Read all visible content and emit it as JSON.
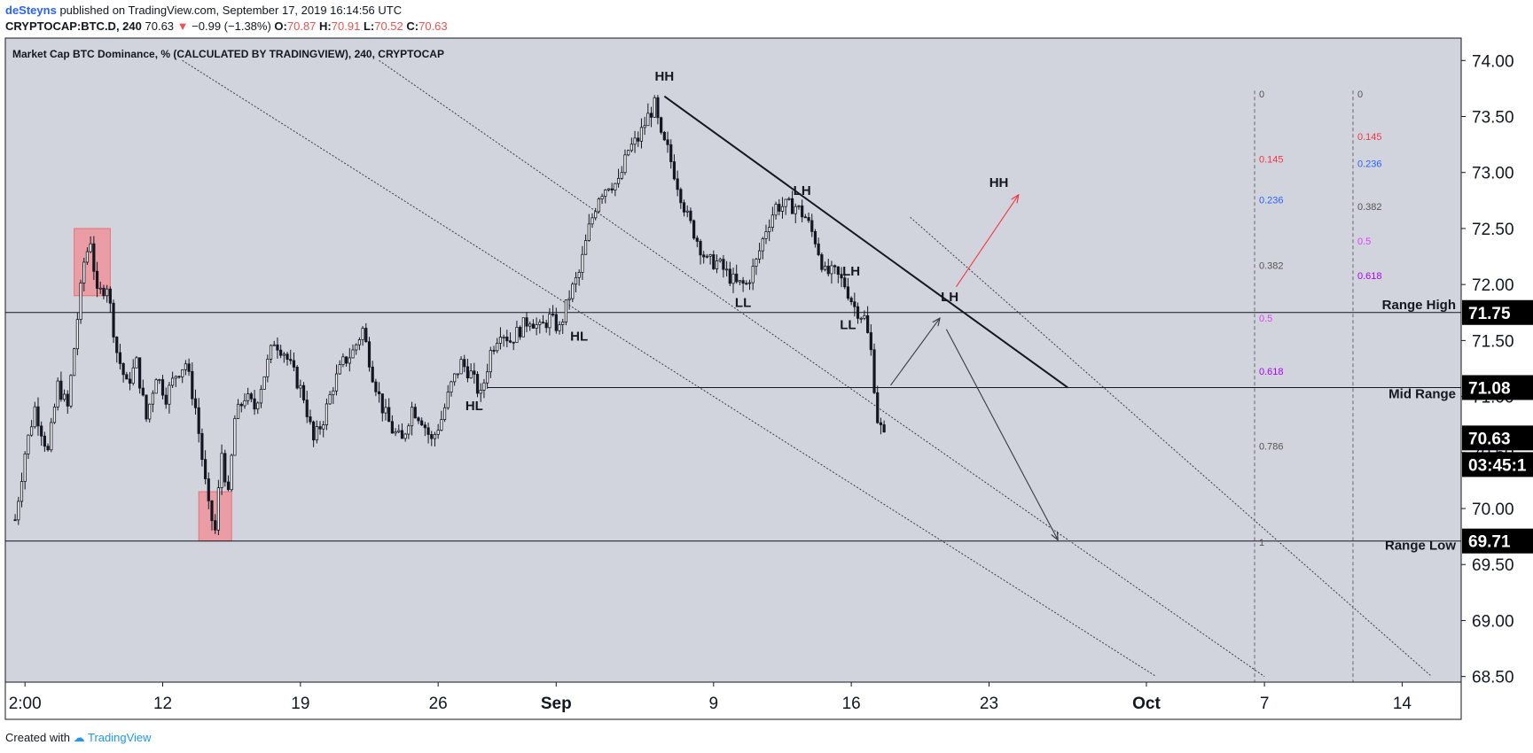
{
  "header": {
    "author": "deSteyns",
    "published": "published on TradingView.com, September 17, 2019 16:14:56 UTC",
    "symbol": "CRYPTOCAP:BTC.D, 240",
    "last": "70.63",
    "change": "−0.99 (−1.38%)",
    "open_label": "O:",
    "open": "70.87",
    "high_label": "H:",
    "high": "70.91",
    "low_label": "L:",
    "low": "70.52",
    "close_label": "C:",
    "close": "70.63"
  },
  "footer": {
    "created_with": "Created with",
    "brand": "TradingView"
  },
  "chart_data": {
    "type": "candlestick",
    "title": "Market Cap BTC Dominance, % (CALCULATED BY TRADINGVIEW), 240, CRYPTOCAP",
    "y_ticks": [
      68.5,
      69.0,
      69.5,
      70.0,
      70.5,
      71.0,
      71.5,
      72.0,
      72.5,
      73.0,
      73.5,
      74.0
    ],
    "ylim": [
      68.45,
      74.2
    ],
    "xlim": [
      "2019-08-04",
      "2019-10-17"
    ],
    "x_ticks": [
      {
        "date": "2019-08-05",
        "label": "2:00"
      },
      {
        "date": "2019-08-12",
        "label": "12"
      },
      {
        "date": "2019-08-19",
        "label": "19"
      },
      {
        "date": "2019-08-26",
        "label": "26"
      },
      {
        "date": "2019-09-01",
        "label": "Sep"
      },
      {
        "date": "2019-09-09",
        "label": "9"
      },
      {
        "date": "2019-09-16",
        "label": "16"
      },
      {
        "date": "2019-09-23",
        "label": "23"
      },
      {
        "date": "2019-10-01",
        "label": "Oct"
      },
      {
        "date": "2019-10-07",
        "label": "7"
      },
      {
        "date": "2019-10-14",
        "label": "14"
      }
    ],
    "series_path": [
      [
        "2019-08-04 12:00",
        69.9
      ],
      [
        "2019-08-05 00:00",
        70.5
      ],
      [
        "2019-08-05 12:00",
        70.9
      ],
      [
        "2019-08-06 04:00",
        70.5
      ],
      [
        "2019-08-06 16:00",
        71.1
      ],
      [
        "2019-08-07 04:00",
        70.9
      ],
      [
        "2019-08-07 16:00",
        71.7
      ],
      [
        "2019-08-08 00:00",
        72.2
      ],
      [
        "2019-08-08 08:00",
        72.4
      ],
      [
        "2019-08-08 16:00",
        71.9
      ],
      [
        "2019-08-09 04:00",
        72.0
      ],
      [
        "2019-08-09 16:00",
        71.4
      ],
      [
        "2019-08-10 04:00",
        71.1
      ],
      [
        "2019-08-10 16:00",
        71.3
      ],
      [
        "2019-08-11 04:00",
        70.8
      ],
      [
        "2019-08-11 16:00",
        71.2
      ],
      [
        "2019-08-12 04:00",
        71.0
      ],
      [
        "2019-08-12 16:00",
        71.2
      ],
      [
        "2019-08-13 04:00",
        71.3
      ],
      [
        "2019-08-13 16:00",
        70.9
      ],
      [
        "2019-08-14 08:00",
        70.0
      ],
      [
        "2019-08-14 16:00",
        69.8
      ],
      [
        "2019-08-15 00:00",
        70.5
      ],
      [
        "2019-08-15 08:00",
        70.1
      ],
      [
        "2019-08-15 16:00",
        70.8
      ],
      [
        "2019-08-16 04:00",
        71.0
      ],
      [
        "2019-08-16 16:00",
        70.9
      ],
      [
        "2019-08-17 04:00",
        71.2
      ],
      [
        "2019-08-17 16:00",
        71.5
      ],
      [
        "2019-08-18 04:00",
        71.4
      ],
      [
        "2019-08-18 16:00",
        71.2
      ],
      [
        "2019-08-19 04:00",
        71.0
      ],
      [
        "2019-08-19 16:00",
        70.6
      ],
      [
        "2019-08-20 04:00",
        70.8
      ],
      [
        "2019-08-20 16:00",
        71.1
      ],
      [
        "2019-08-21 04:00",
        71.3
      ],
      [
        "2019-08-21 16:00",
        71.4
      ],
      [
        "2019-08-22 04:00",
        71.6
      ],
      [
        "2019-08-22 16:00",
        71.2
      ],
      [
        "2019-08-23 04:00",
        70.9
      ],
      [
        "2019-08-23 16:00",
        70.7
      ],
      [
        "2019-08-24 04:00",
        70.6
      ],
      [
        "2019-08-24 16:00",
        70.9
      ],
      [
        "2019-08-25 04:00",
        70.8
      ],
      [
        "2019-08-25 16:00",
        70.6
      ],
      [
        "2019-08-26 04:00",
        70.8
      ],
      [
        "2019-08-26 16:00",
        71.1
      ],
      [
        "2019-08-27 04:00",
        71.3
      ],
      [
        "2019-08-27 16:00",
        71.2
      ],
      [
        "2019-08-28 04:00",
        71.0
      ],
      [
        "2019-08-28 16:00",
        71.4
      ],
      [
        "2019-08-29 04:00",
        71.6
      ],
      [
        "2019-08-29 16:00",
        71.5
      ],
      [
        "2019-08-30 04:00",
        71.6
      ],
      [
        "2019-08-30 16:00",
        71.7
      ],
      [
        "2019-08-31 04:00",
        71.6
      ],
      [
        "2019-08-31 16:00",
        71.7
      ],
      [
        "2019-09-01 04:00",
        71.6
      ],
      [
        "2019-09-01 16:00",
        71.9
      ],
      [
        "2019-09-02 04:00",
        72.1
      ],
      [
        "2019-09-02 16:00",
        72.5
      ],
      [
        "2019-09-03 04:00",
        72.8
      ],
      [
        "2019-09-03 16:00",
        72.9
      ],
      [
        "2019-09-04 04:00",
        72.9
      ],
      [
        "2019-09-04 16:00",
        73.2
      ],
      [
        "2019-09-05 04:00",
        73.3
      ],
      [
        "2019-09-05 16:00",
        73.5
      ],
      [
        "2019-09-06 00:00",
        73.6
      ],
      [
        "2019-09-06 08:00",
        73.3
      ],
      [
        "2019-09-06 16:00",
        73.2
      ],
      [
        "2019-09-07 04:00",
        72.9
      ],
      [
        "2019-09-07 16:00",
        72.6
      ],
      [
        "2019-09-08 04:00",
        72.4
      ],
      [
        "2019-09-08 16:00",
        72.2
      ],
      [
        "2019-09-09 04:00",
        72.2
      ],
      [
        "2019-09-09 16:00",
        72.1
      ],
      [
        "2019-09-10 04:00",
        72.0
      ],
      [
        "2019-09-10 16:00",
        72.0
      ],
      [
        "2019-09-11 04:00",
        72.2
      ],
      [
        "2019-09-11 16:00",
        72.5
      ],
      [
        "2019-09-12 04:00",
        72.7
      ],
      [
        "2019-09-12 16:00",
        72.7
      ],
      [
        "2019-09-13 04:00",
        72.7
      ],
      [
        "2019-09-13 16:00",
        72.6
      ],
      [
        "2019-09-14 04:00",
        72.4
      ],
      [
        "2019-09-14 16:00",
        72.1
      ],
      [
        "2019-09-15 04:00",
        72.1
      ],
      [
        "2019-09-15 16:00",
        72.0
      ],
      [
        "2019-09-16 04:00",
        71.8
      ],
      [
        "2019-09-16 16:00",
        71.7
      ],
      [
        "2019-09-17 00:00",
        71.4
      ],
      [
        "2019-09-17 08:00",
        70.8
      ],
      [
        "2019-09-17 16:00",
        70.63
      ]
    ],
    "highlight_boxes": [
      {
        "from": "2019-08-07 12:00",
        "to": "2019-08-09 08:00",
        "y_top": 72.5,
        "y_bottom": 71.9
      },
      {
        "from": "2019-08-13 20:00",
        "to": "2019-08-15 12:00",
        "y_top": 70.15,
        "y_bottom": 69.71
      }
    ],
    "levels": [
      {
        "value": 71.75,
        "label": "Range High"
      },
      {
        "value": 71.08,
        "label": "Mid Range"
      },
      {
        "value": 69.71,
        "label": "Range Low"
      }
    ],
    "price_badges": [
      "71.75",
      "71.08",
      "70.63",
      "03:45:1",
      "69.71"
    ],
    "structure_labels": [
      {
        "text": "HH",
        "date": "2019-09-06 12:00",
        "value": 73.82
      },
      {
        "text": "LH",
        "date": "2019-09-13 12:00",
        "value": 72.8
      },
      {
        "text": "LH",
        "date": "2019-09-16 00:00",
        "value": 72.08
      },
      {
        "text": "LL",
        "date": "2019-09-10 12:00",
        "value": 71.8
      },
      {
        "text": "LL",
        "date": "2019-09-15 20:00",
        "value": 71.6
      },
      {
        "text": "HL",
        "date": "2019-09-02 04:00",
        "value": 71.5
      },
      {
        "text": "HL",
        "date": "2019-08-27 20:00",
        "value": 70.88
      },
      {
        "text": "LH",
        "date": "2019-09-21 00:00",
        "value": 71.85
      },
      {
        "text": "HH",
        "date": "2019-09-23 12:00",
        "value": 72.87
      }
    ],
    "trendline": {
      "from": [
        "2019-09-06 12:00",
        73.68
      ],
      "to": [
        "2019-09-27 00:00",
        71.08
      ]
    },
    "channel_lines": [
      {
        "from": [
          "2019-08-13 00:00",
          74.0
        ],
        "to": [
          "2019-10-01 12:00",
          68.5
        ]
      },
      {
        "from": [
          "2019-08-23 00:00",
          74.0
        ],
        "to": [
          "2019-10-07 00:00",
          68.5
        ]
      },
      {
        "from": [
          "2019-09-19 00:00",
          72.6
        ],
        "to": [
          "2019-10-15 12:00",
          68.5
        ]
      }
    ],
    "arrows": [
      {
        "from": [
          "2019-09-18 00:00",
          71.1
        ],
        "to": [
          "2019-09-20 12:00",
          71.7
        ],
        "color": "#363a45"
      },
      {
        "from": [
          "2019-09-20 20:00",
          71.6
        ],
        "to": [
          "2019-09-26 12:00",
          69.72
        ],
        "color": "#363a45"
      },
      {
        "from": [
          "2019-09-21 08:00",
          71.98
        ],
        "to": [
          "2019-09-24 12:00",
          72.8
        ],
        "color": "#f23645"
      }
    ],
    "fib_sets": [
      {
        "date": "2019-10-06 12:00",
        "top": 73.7,
        "bottom": 69.7,
        "levels": [
          {
            "ratio": "0",
            "color": "#555555"
          },
          {
            "ratio": "0.145",
            "color": "#f23645"
          },
          {
            "ratio": "0.236",
            "color": "#2962ff"
          },
          {
            "ratio": "0.382",
            "color": "#555555"
          },
          {
            "ratio": "0.5",
            "color": "#e040fb"
          },
          {
            "ratio": "0.618",
            "color": "#aa00ff"
          },
          {
            "ratio": "0.786",
            "color": "#555555"
          },
          {
            "ratio": "1",
            "color": "#555555"
          }
        ]
      },
      {
        "date": "2019-10-11 12:00",
        "top": 73.7,
        "bottom": 71.08,
        "levels": [
          {
            "ratio": "0",
            "color": "#555555"
          },
          {
            "ratio": "0.145",
            "color": "#f23645"
          },
          {
            "ratio": "0.236",
            "color": "#2962ff"
          },
          {
            "ratio": "0.382",
            "color": "#555555"
          },
          {
            "ratio": "0.5",
            "color": "#e040fb"
          },
          {
            "ratio": "0.618",
            "color": "#aa00ff"
          }
        ]
      }
    ],
    "colors": {
      "background": "#d1d4dc",
      "candles": "#131722",
      "box": "#f28b91",
      "axis_bg": "#ffffff"
    }
  }
}
